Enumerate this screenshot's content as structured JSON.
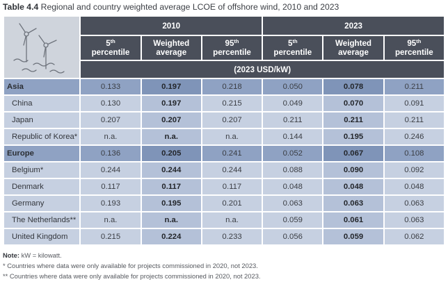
{
  "caption": {
    "label": "Table 4.4",
    "title": "Regional and country weighted average LCOE of offshore wind, 2010 and 2023"
  },
  "table": {
    "years": [
      "2010",
      "2023"
    ],
    "column_headers": [
      {
        "pre": "5",
        "sup": "th",
        "post": "percentile"
      },
      {
        "pre": "Weighted",
        "sup": "",
        "post": "average"
      },
      {
        "pre": "95",
        "sup": "th",
        "post": "percentile"
      },
      {
        "pre": "5",
        "sup": "th",
        "post": "percentile"
      },
      {
        "pre": "Weighted",
        "sup": "",
        "post": "average"
      },
      {
        "pre": "95",
        "sup": "th",
        "post": "percentile"
      }
    ],
    "unit": "(2023 USD/kW)",
    "icon": "offshore-wind-turbines-icon",
    "rows": [
      {
        "label": "Asia",
        "type": "region",
        "values": [
          "0.133",
          "0.197",
          "0.218",
          "0.050",
          "0.078",
          "0.211"
        ]
      },
      {
        "label": "China",
        "type": "country",
        "values": [
          "0.130",
          "0.197",
          "0.215",
          "0.049",
          "0.070",
          "0.091"
        ]
      },
      {
        "label": "Japan",
        "type": "country",
        "values": [
          "0.207",
          "0.207",
          "0.207",
          "0.211",
          "0.211",
          "0.211"
        ]
      },
      {
        "label": "Republic of Korea*",
        "type": "country",
        "values": [
          "n.a.",
          "n.a.",
          "n.a.",
          "0.144",
          "0.195",
          "0.246"
        ]
      },
      {
        "label": "Europe",
        "type": "region",
        "values": [
          "0.136",
          "0.205",
          "0.241",
          "0.052",
          "0.067",
          "0.108"
        ]
      },
      {
        "label": "Belgium*",
        "type": "country",
        "values": [
          "0.244",
          "0.244",
          "0.244",
          "0.088",
          "0.090",
          "0.092"
        ]
      },
      {
        "label": "Denmark",
        "type": "country",
        "values": [
          "0.117",
          "0.117",
          "0.117",
          "0.048",
          "0.048",
          "0.048"
        ]
      },
      {
        "label": "Germany",
        "type": "country",
        "values": [
          "0.193",
          "0.195",
          "0.201",
          "0.063",
          "0.063",
          "0.063"
        ]
      },
      {
        "label": "The Netherlands**",
        "type": "country",
        "values": [
          "n.a.",
          "n.a.",
          "n.a.",
          "0.059",
          "0.061",
          "0.063"
        ]
      },
      {
        "label": "United Kingdom",
        "type": "country",
        "values": [
          "0.215",
          "0.224",
          "0.233",
          "0.056",
          "0.059",
          "0.062"
        ]
      }
    ]
  },
  "notes": {
    "note_label": "Note:",
    "note_text": "kW = kilowatt.",
    "footnote1": "* Countries where data were only available for projects commissioned in 2020, not 2023.",
    "footnote2": "** Countries where data were only available for projects commissioned in 2020, not 2023."
  },
  "colors": {
    "header_bg": "#4a4f5a",
    "region_row": "#8fa2c3",
    "country_row": "#c6d0e1",
    "weighted_col_region": "#7f94b8",
    "weighted_col_country": "#b4c1d8"
  }
}
